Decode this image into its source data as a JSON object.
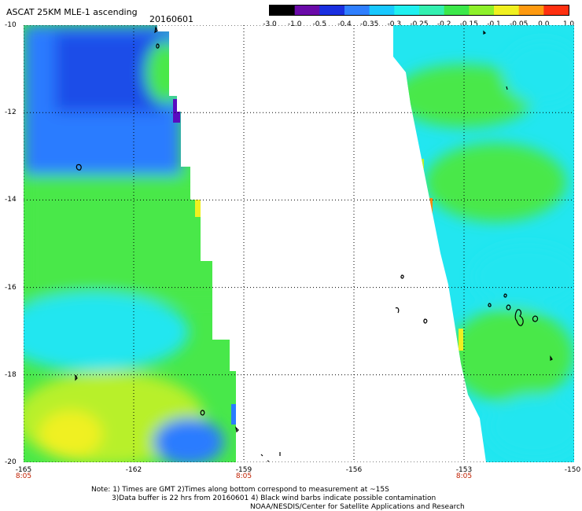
{
  "header": {
    "title": "ASCAT 25KM MLE-1 ascending",
    "date": "20160601"
  },
  "colorbar": {
    "labels": [
      "-3.0",
      "-1.0",
      "-0.5",
      "-0.4",
      "-0.35",
      "-0.3",
      "-0.25",
      "-0.2",
      "-0.15",
      "-0.1",
      "-0.05",
      "0.0",
      "1.0"
    ],
    "colors": [
      "#000000",
      "#6a0aa8",
      "#1a2fe0",
      "#2f7fff",
      "#18c8ff",
      "#1ff0f0",
      "#33f0b0",
      "#3ce84a",
      "#8ef02a",
      "#f0f020",
      "#ff9a10",
      "#ff3010"
    ]
  },
  "axes": {
    "y_ticks": [
      "-10",
      "-12",
      "-14",
      "-16",
      "-18",
      "-20"
    ],
    "x_ticks": [
      "-165",
      "-162",
      "-159",
      "-156",
      "-153",
      "-150"
    ],
    "time_labels": [
      "8:05",
      "8:05",
      "8:05"
    ]
  },
  "map": {
    "lat_range": [
      -20,
      -10
    ],
    "lon_range": [
      -165,
      -150
    ],
    "colors": {
      "deep_blue": "#1a4ee8",
      "blue": "#2a7cff",
      "cyan": "#22e6f0",
      "aqua_green": "#3cf0a8",
      "green": "#48e84a",
      "yellow_green": "#b8f02a",
      "yellow": "#f0f020",
      "orange": "#ff8a10",
      "purple": "#5a0cc0"
    }
  },
  "notes": {
    "line1": "Note: 1) Times are GMT 2)Times along bottom correspond to measurement at ~15S",
    "line2": "3)Data buffer is 22 hrs from 20160601 4) Black wind barbs indicate possible contamination",
    "line3": "NOAA/NESDIS/Center for Satellite Applications and Research"
  }
}
